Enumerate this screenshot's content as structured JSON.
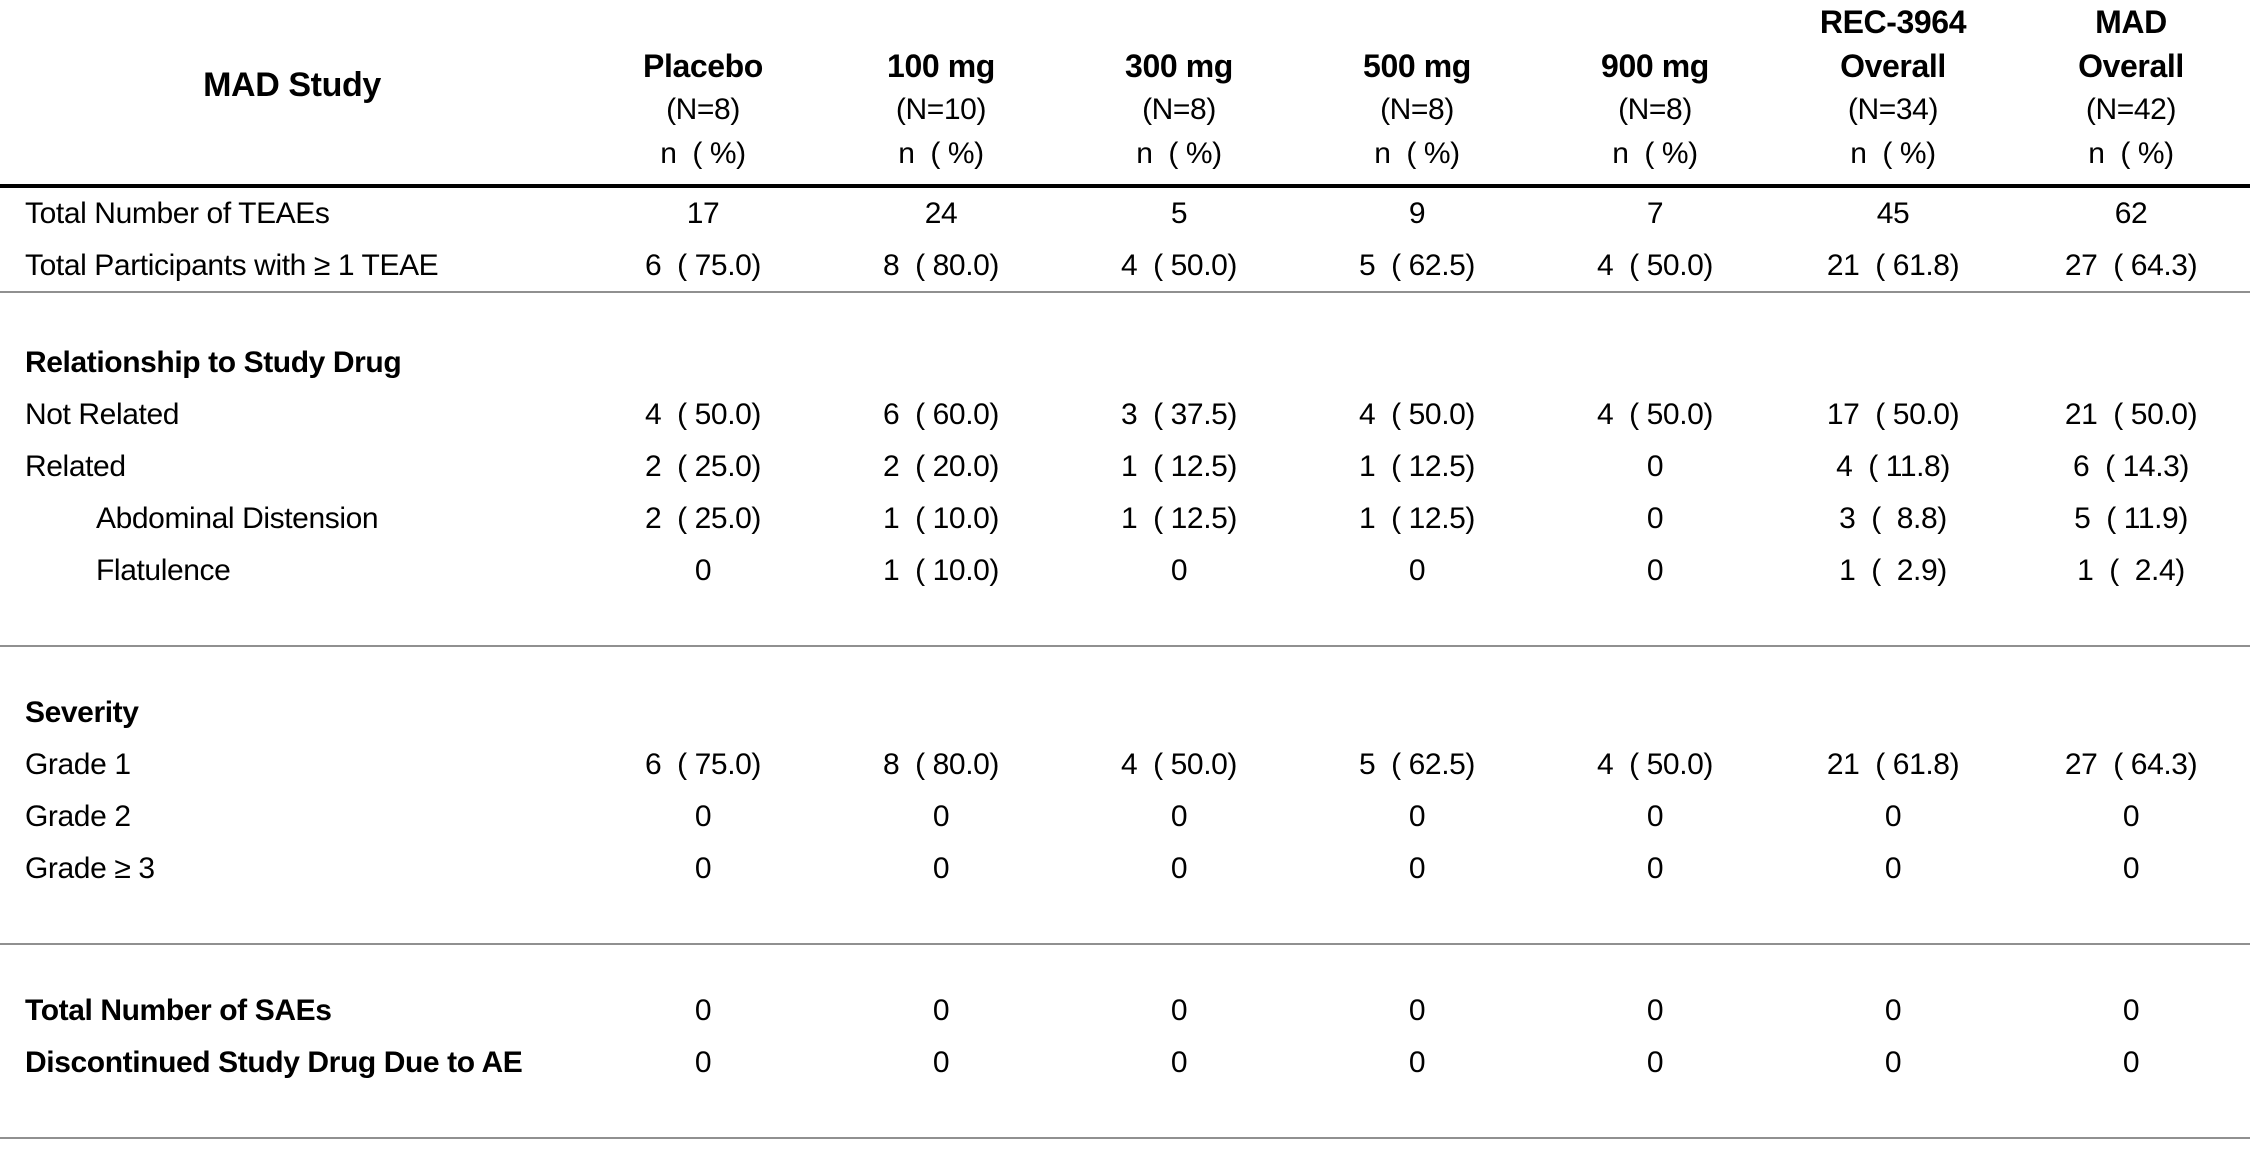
{
  "colors": {
    "background": "#ffffff",
    "text": "#000000",
    "header_rule": "#000000",
    "divider_rule": "#909090"
  },
  "table": {
    "title": "MAD Study",
    "columns": [
      {
        "title": "Placebo",
        "n_label": "(N=8)",
        "stat_label": "n  ( %)"
      },
      {
        "title": "100 mg",
        "n_label": "(N=10)",
        "stat_label": "n  ( %)"
      },
      {
        "title": "300 mg",
        "n_label": "(N=8)",
        "stat_label": "n  ( %)"
      },
      {
        "title": "500 mg",
        "n_label": "(N=8)",
        "stat_label": "n  ( %)"
      },
      {
        "title": "900 mg",
        "n_label": "(N=8)",
        "stat_label": "n  ( %)"
      },
      {
        "title": "REC-3964\nOverall",
        "n_label": "(N=34)",
        "stat_label": "n  ( %)"
      },
      {
        "title": "MAD\nOverall",
        "n_label": "(N=42)",
        "stat_label": "n  ( %)"
      }
    ],
    "rows": [
      {
        "label": "Total Number of TEAEs",
        "cells": [
          "17",
          "24",
          "5",
          "9",
          "7",
          "45",
          "62"
        ]
      },
      {
        "label": "Total Participants with ≥ 1 TEAE",
        "cells": [
          "6  ( 75.0)",
          "8  ( 80.0)",
          "4  ( 50.0)",
          "5  ( 62.5)",
          "4  ( 50.0)",
          "21  ( 61.8)",
          "27  ( 64.3)"
        ]
      },
      {
        "section": "Relationship to Study Drug",
        "gap": "sm"
      },
      {
        "label": "Not Related",
        "cells": [
          "4  ( 50.0)",
          "6  ( 60.0)",
          "3  ( 37.5)",
          "4  ( 50.0)",
          "4  ( 50.0)",
          "17  ( 50.0)",
          "21  ( 50.0)"
        ]
      },
      {
        "label": "Related",
        "cells": [
          "2  ( 25.0)",
          "2  ( 20.0)",
          "1  ( 12.5)",
          "1  ( 12.5)",
          "0",
          "4  ( 11.8)",
          "6  ( 14.3)"
        ]
      },
      {
        "label": "Abdominal Distension",
        "indent": true,
        "cells": [
          "2  ( 25.0)",
          "1  ( 10.0)",
          "1  ( 12.5)",
          "1  ( 12.5)",
          "0",
          "3  (  8.8)",
          "5  ( 11.9)"
        ]
      },
      {
        "label": "Flatulence",
        "indent": true,
        "cells": [
          "0",
          "1  ( 10.0)",
          "0",
          "0",
          "0",
          "1  (  2.9)",
          "1  (  2.4)"
        ]
      },
      {
        "section": "Severity",
        "gap": "lg"
      },
      {
        "label": "Grade 1",
        "cells": [
          "6  ( 75.0)",
          "8  ( 80.0)",
          "4  ( 50.0)",
          "5  ( 62.5)",
          "4  ( 50.0)",
          "21  ( 61.8)",
          "27  ( 64.3)"
        ]
      },
      {
        "label": "Grade 2",
        "cells": [
          "0",
          "0",
          "0",
          "0",
          "0",
          "0",
          "0"
        ]
      },
      {
        "label": "Grade ≥ 3",
        "cells": [
          "0",
          "0",
          "0",
          "0",
          "0",
          "0",
          "0"
        ]
      },
      {
        "label": "Total Number of SAEs",
        "bold": true,
        "gap": "lg",
        "cells": [
          "0",
          "0",
          "0",
          "0",
          "0",
          "0",
          "0"
        ]
      },
      {
        "label": "Discontinued Study Drug Due to AE",
        "bold": true,
        "cells": [
          "0",
          "0",
          "0",
          "0",
          "0",
          "0",
          "0"
        ]
      }
    ]
  }
}
